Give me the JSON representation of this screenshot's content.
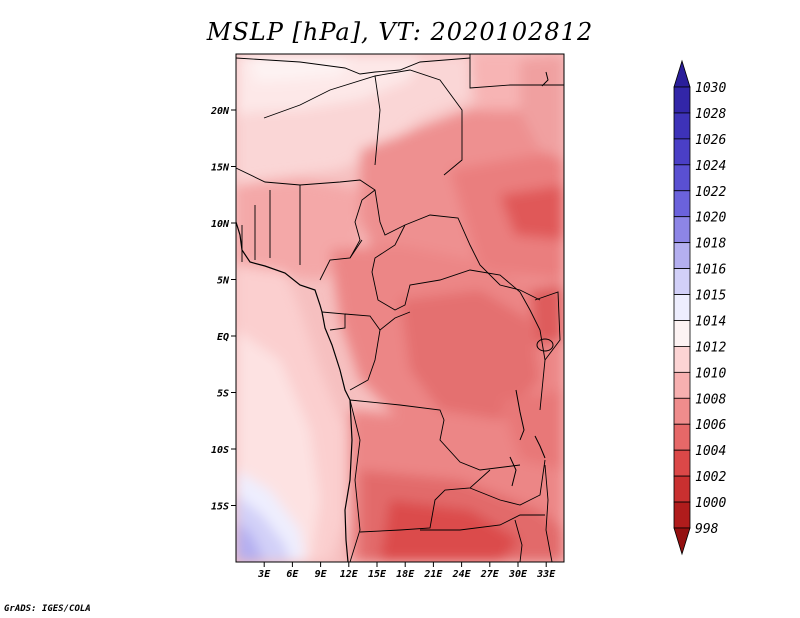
{
  "title": "MSLP [hPa], VT: 2020102812",
  "credit": "GrADS: IGES/COLA",
  "map": {
    "field": "MSLP",
    "units": "hPa",
    "lon_range": [
      0,
      35
    ],
    "lat_range": [
      -20,
      25
    ],
    "lat_labels": [
      "20N",
      "15N",
      "10N",
      "5N",
      "EQ",
      "5S",
      "10S",
      "15S"
    ],
    "lon_labels": [
      "3E",
      "6E",
      "9E",
      "12E",
      "15E",
      "18E",
      "21E",
      "24E",
      "27E",
      "30E",
      "33E"
    ]
  },
  "colorbar": {
    "labels": [
      "1030",
      "1028",
      "1026",
      "1024",
      "1022",
      "1020",
      "1018",
      "1016",
      "1015",
      "1014",
      "1012",
      "1010",
      "1008",
      "1006",
      "1004",
      "1002",
      "1000",
      "998"
    ],
    "colors": [
      "#2a1e9a",
      "#3226a8",
      "#3d32b8",
      "#4a3fc6",
      "#5a50d2",
      "#6b62dc",
      "#8d85e6",
      "#b4aff0",
      "#d2d0f8",
      "#eeeefe",
      "#fdf3f3",
      "#fcd4d4",
      "#f7b0b0",
      "#ef8c8c",
      "#e66868",
      "#db4848",
      "#c93030",
      "#b01c1c",
      "#941010"
    ]
  }
}
